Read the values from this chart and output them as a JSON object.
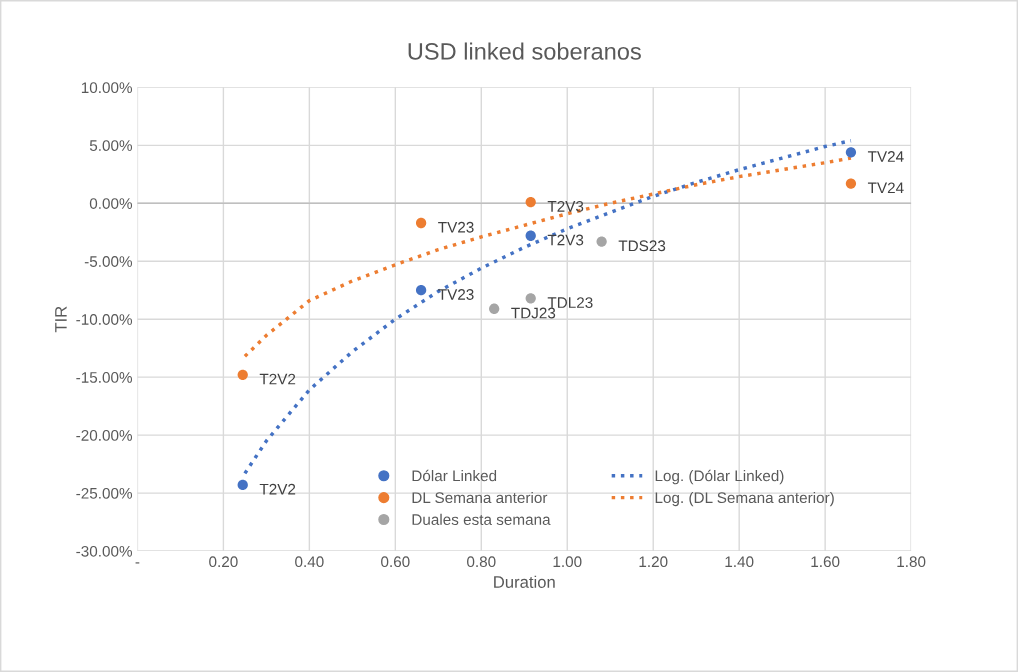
{
  "chart_data": {
    "type": "scatter",
    "title": "USD linked soberanos",
    "xlabel": "Duration",
    "ylabel": "TIR",
    "xlim": [
      0,
      1.8
    ],
    "xticks": [
      {
        "value": 0,
        "label": "-"
      },
      {
        "value": 0.2,
        "label": "0.20"
      },
      {
        "value": 0.4,
        "label": "0.40"
      },
      {
        "value": 0.6,
        "label": "0.60"
      },
      {
        "value": 0.8,
        "label": "0.80"
      },
      {
        "value": 1.0,
        "label": "1.00"
      },
      {
        "value": 1.2,
        "label": "1.20"
      },
      {
        "value": 1.4,
        "label": "1.40"
      },
      {
        "value": 1.6,
        "label": "1.60"
      },
      {
        "value": 1.8,
        "label": "1.80"
      }
    ],
    "ylim": [
      -30,
      10
    ],
    "yticks": [
      {
        "value": -30,
        "label": "-30.00%"
      },
      {
        "value": -25,
        "label": "-25.00%"
      },
      {
        "value": -20,
        "label": "-20.00%"
      },
      {
        "value": -15,
        "label": "-15.00%"
      },
      {
        "value": -10,
        "label": "-10.00%"
      },
      {
        "value": -5,
        "label": "-5.00%"
      },
      {
        "value": 0,
        "label": "0.00%"
      },
      {
        "value": 5,
        "label": "5.00%"
      },
      {
        "value": 10,
        "label": "10.00%"
      }
    ],
    "grid": true,
    "legend": "bottom",
    "series": [
      {
        "name": "Dólar Linked",
        "marker": "circle",
        "color": "#4472c4",
        "x": [
          0.245,
          0.66,
          0.915,
          1.66
        ],
        "values": [
          -24.3,
          -7.5,
          -2.8,
          4.4
        ]
      },
      {
        "name": "DL Semana anterior",
        "marker": "circle",
        "color": "#ed7d31",
        "x": [
          0.245,
          0.66,
          0.915,
          1.66
        ],
        "values": [
          -14.8,
          -1.7,
          0.1,
          1.7
        ]
      },
      {
        "name": "Duales esta semana",
        "marker": "circle",
        "color": "#a5a5a5",
        "x": [
          1.08,
          0.83,
          0.915
        ],
        "values": [
          -3.3,
          -9.1,
          -8.2
        ]
      },
      {
        "name": "Log. (Dólar Linked)",
        "type": "line",
        "marker": "none",
        "line_style": "dotted",
        "color": "#4472c4",
        "x": [
          0.25,
          0.3,
          0.4,
          0.5,
          0.6,
          0.7,
          0.8,
          0.9,
          1.0,
          1.1,
          1.2,
          1.3,
          1.4,
          1.5,
          1.6,
          1.66
        ],
        "values": [
          -23.3,
          -20.5,
          -16.1,
          -12.8,
          -10.0,
          -7.6,
          -5.6,
          -3.8,
          -2.2,
          -0.8,
          0.6,
          1.8,
          2.9,
          3.9,
          4.9,
          5.4
        ]
      },
      {
        "name": "Log. (DL Semana anterior)",
        "type": "line",
        "marker": "none",
        "line_style": "dotted",
        "color": "#ed7d31",
        "x": [
          0.25,
          0.3,
          0.4,
          0.5,
          0.6,
          0.7,
          0.8,
          0.9,
          1.0,
          1.1,
          1.2,
          1.3,
          1.4,
          1.5,
          1.6,
          1.66
        ],
        "values": [
          -13.2,
          -11.4,
          -8.4,
          -6.7,
          -5.3,
          -4.0,
          -2.9,
          -1.9,
          -0.9,
          0.0,
          0.8,
          1.6,
          2.3,
          2.9,
          3.5,
          3.9
        ]
      }
    ],
    "annotations": [
      {
        "text": "T2V2",
        "x": 0.245,
        "y": -24.3
      },
      {
        "text": "TV23",
        "x": 0.66,
        "y": -7.5
      },
      {
        "text": "T2V3",
        "x": 0.915,
        "y": -2.8
      },
      {
        "text": "TV24",
        "x": 1.66,
        "y": 4.4
      },
      {
        "text": "T2V2",
        "x": 0.245,
        "y": -14.8
      },
      {
        "text": "TV23",
        "x": 0.66,
        "y": -1.7
      },
      {
        "text": "T2V3",
        "x": 0.915,
        "y": 0.1
      },
      {
        "text": "TV24",
        "x": 1.66,
        "y": 1.7
      },
      {
        "text": "TDS23",
        "x": 1.08,
        "y": -3.3
      },
      {
        "text": "TDJ23",
        "x": 0.83,
        "y": -9.1
      },
      {
        "text": "TDL23",
        "x": 0.915,
        "y": -8.2
      }
    ]
  }
}
